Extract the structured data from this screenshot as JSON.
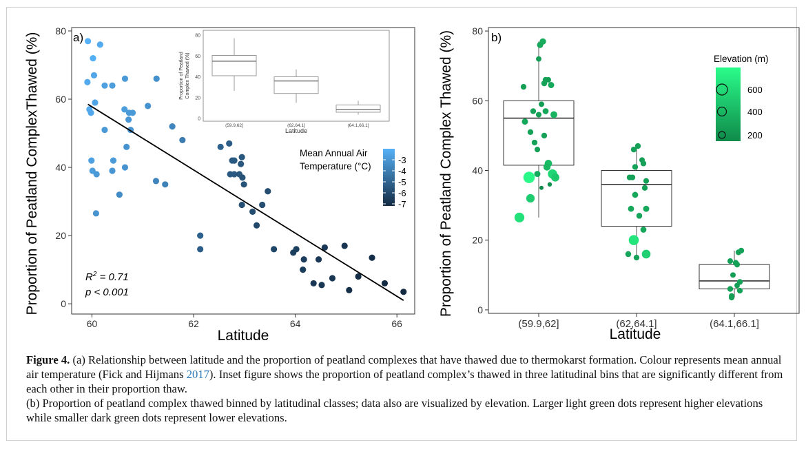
{
  "chart_data": [
    {
      "type": "scatter",
      "panel_label": "a)",
      "xlabel": "Latitude",
      "ylabel": "Proportion of Peatland ComplexThawed (%)",
      "xlim": [
        59.6,
        66.35
      ],
      "ylim": [
        -3,
        81
      ],
      "x_ticks": [
        60,
        62,
        64,
        66
      ],
      "y_ticks": [
        0,
        20,
        40,
        60,
        80
      ],
      "grid": false,
      "legend": {
        "title": "Mean Annual Air Temperature (°C)",
        "title_line1": "Mean Annual Air",
        "title_line2": "Temperature (°C)",
        "ticks": [
          "-3",
          "-4",
          "-5",
          "-6",
          "-7"
        ],
        "position": "right",
        "color_high": "#56b1f7",
        "color_low": "#132b43"
      },
      "annotation": {
        "r2_prefix": "R",
        "r2_sup": "2",
        "r2_suffix": " = 0.71",
        "p": "p < 0.001"
      },
      "trend": {
        "x": [
          59.92,
          66.13
        ],
        "y": [
          58.5,
          1.0
        ]
      },
      "points": [
        {
          "x": 59.92,
          "y": 77,
          "t": -3.0
        },
        {
          "x": 60.16,
          "y": 76,
          "t": -3.2
        },
        {
          "x": 60.02,
          "y": 72,
          "t": -3.1
        },
        {
          "x": 60.04,
          "y": 67,
          "t": -3.3
        },
        {
          "x": 59.91,
          "y": 65,
          "t": -3.2
        },
        {
          "x": 60.25,
          "y": 64,
          "t": -3.5
        },
        {
          "x": 60.4,
          "y": 64,
          "t": -3.6
        },
        {
          "x": 60.65,
          "y": 66,
          "t": -3.7
        },
        {
          "x": 61.27,
          "y": 66,
          "t": -4.0
        },
        {
          "x": 61.1,
          "y": 58,
          "t": -3.9
        },
        {
          "x": 60.06,
          "y": 59,
          "t": -3.4
        },
        {
          "x": 59.95,
          "y": 57,
          "t": -3.2
        },
        {
          "x": 59.98,
          "y": 56,
          "t": -3.3
        },
        {
          "x": 60.64,
          "y": 57,
          "t": -3.6
        },
        {
          "x": 60.73,
          "y": 56,
          "t": -3.7
        },
        {
          "x": 60.8,
          "y": 56,
          "t": -3.7
        },
        {
          "x": 60.72,
          "y": 54,
          "t": -3.8
        },
        {
          "x": 60.76,
          "y": 51,
          "t": -3.8
        },
        {
          "x": 60.25,
          "y": 51,
          "t": -3.7
        },
        {
          "x": 61.58,
          "y": 52,
          "t": -4.3
        },
        {
          "x": 61.78,
          "y": 48,
          "t": -4.6
        },
        {
          "x": 60.68,
          "y": 46,
          "t": -3.9
        },
        {
          "x": 59.99,
          "y": 42,
          "t": -3.5
        },
        {
          "x": 60.42,
          "y": 42,
          "t": -3.7
        },
        {
          "x": 60.65,
          "y": 40,
          "t": -3.9
        },
        {
          "x": 60.01,
          "y": 39,
          "t": -3.6
        },
        {
          "x": 60.4,
          "y": 39,
          "t": -3.8
        },
        {
          "x": 60.09,
          "y": 38,
          "t": -3.7
        },
        {
          "x": 61.26,
          "y": 36,
          "t": -4.3
        },
        {
          "x": 61.44,
          "y": 35,
          "t": -4.4
        },
        {
          "x": 60.54,
          "y": 32,
          "t": -4.1
        },
        {
          "x": 60.08,
          "y": 26.5,
          "t": -3.9
        },
        {
          "x": 62.53,
          "y": 46,
          "t": -5.4
        },
        {
          "x": 62.7,
          "y": 47,
          "t": -5.5
        },
        {
          "x": 62.76,
          "y": 42,
          "t": -5.6
        },
        {
          "x": 62.8,
          "y": 42,
          "t": -5.6
        },
        {
          "x": 62.95,
          "y": 43,
          "t": -5.7
        },
        {
          "x": 62.93,
          "y": 41,
          "t": -5.7
        },
        {
          "x": 62.72,
          "y": 38,
          "t": -5.6
        },
        {
          "x": 62.8,
          "y": 38,
          "t": -5.6
        },
        {
          "x": 62.9,
          "y": 38,
          "t": -5.7
        },
        {
          "x": 62.96,
          "y": 37,
          "t": -5.8
        },
        {
          "x": 62.99,
          "y": 35,
          "t": -5.8
        },
        {
          "x": 63.46,
          "y": 33,
          "t": -6.0
        },
        {
          "x": 62.95,
          "y": 29,
          "t": -5.9
        },
        {
          "x": 63.35,
          "y": 29,
          "t": -6.0
        },
        {
          "x": 63.16,
          "y": 27,
          "t": -6.0
        },
        {
          "x": 63.24,
          "y": 23,
          "t": -6.1
        },
        {
          "x": 62.13,
          "y": 20,
          "t": -5.4
        },
        {
          "x": 62.13,
          "y": 16,
          "t": -5.5
        },
        {
          "x": 63.58,
          "y": 16,
          "t": -6.2
        },
        {
          "x": 64.02,
          "y": 16,
          "t": -6.4
        },
        {
          "x": 63.96,
          "y": 15,
          "t": -6.4
        },
        {
          "x": 64.17,
          "y": 13,
          "t": -6.5
        },
        {
          "x": 64.15,
          "y": 10,
          "t": -6.5
        },
        {
          "x": 64.58,
          "y": 16.5,
          "t": -6.6
        },
        {
          "x": 64.97,
          "y": 17,
          "t": -6.7
        },
        {
          "x": 64.46,
          "y": 13,
          "t": -6.6
        },
        {
          "x": 65.51,
          "y": 13.5,
          "t": -6.9
        },
        {
          "x": 65.24,
          "y": 8,
          "t": -6.9
        },
        {
          "x": 64.73,
          "y": 7.5,
          "t": -6.7
        },
        {
          "x": 64.36,
          "y": 6,
          "t": -6.6
        },
        {
          "x": 64.52,
          "y": 5.5,
          "t": -6.6
        },
        {
          "x": 65.76,
          "y": 6,
          "t": -7.0
        },
        {
          "x": 65.06,
          "y": 4,
          "t": -6.9
        },
        {
          "x": 66.13,
          "y": 3.5,
          "t": -7.0
        }
      ]
    },
    {
      "type": "boxplot",
      "role": "inset",
      "xlabel": "Latitude",
      "ylabel_line1": "Proportion of Peatland",
      "ylabel_line2": "Complex Thawed (%)",
      "categories": [
        "(59.9,62]",
        "(62,64.1]",
        "(64.1,66.1]"
      ],
      "ylim": [
        0,
        82
      ],
      "y_ticks": [
        0,
        20,
        40,
        60,
        80
      ],
      "boxes": [
        {
          "min": 26.5,
          "q1": 41,
          "median": 55,
          "q3": 60.5,
          "max": 77
        },
        {
          "min": 15,
          "q1": 24,
          "median": 36,
          "q3": 40,
          "max": 47
        },
        {
          "min": 3.5,
          "q1": 6,
          "median": 8.5,
          "q3": 13,
          "max": 17
        }
      ]
    },
    {
      "type": "boxplot",
      "panel_label": "b)",
      "xlabel": "Latitude",
      "ylabel": "Proportion of Peatland Complex Thawed (%)",
      "categories": [
        "(59.9,62]",
        "(62,64.1]",
        "(64.1,66.1]"
      ],
      "ylim": [
        -1,
        81
      ],
      "y_ticks": [
        0,
        20,
        40,
        60,
        80
      ],
      "grid": false,
      "legend": {
        "title": "Elevation (m)",
        "ticks": [
          "600",
          "400",
          "200"
        ],
        "position": "top-right",
        "color_high": "#2afc8a",
        "color_low": "#0f8a4a"
      },
      "boxes": [
        {
          "min": 26.5,
          "q1": 41.5,
          "median": 55,
          "q3": 60,
          "max": 77
        },
        {
          "min": 15,
          "q1": 24,
          "median": 36,
          "q3": 40,
          "max": 47
        },
        {
          "min": 3.5,
          "q1": 6,
          "median": 8.3,
          "q3": 13,
          "max": 17
        }
      ],
      "points": [
        {
          "c": 0,
          "dx": 0.06,
          "y": 77,
          "e": 350
        },
        {
          "c": 0,
          "dx": 0.02,
          "y": 76,
          "e": 330
        },
        {
          "c": 0,
          "dx": 0.0,
          "y": 72,
          "e": 280
        },
        {
          "c": 0,
          "dx": 0.1,
          "y": 66,
          "e": 300
        },
        {
          "c": 0,
          "dx": 0.14,
          "y": 66,
          "e": 280
        },
        {
          "c": 0,
          "dx": 0.08,
          "y": 65,
          "e": 310
        },
        {
          "c": 0,
          "dx": 0.18,
          "y": 64.5,
          "e": 330
        },
        {
          "c": 0,
          "dx": -0.22,
          "y": 64,
          "e": 300
        },
        {
          "c": 0,
          "dx": 0.04,
          "y": 59,
          "e": 280
        },
        {
          "c": 0,
          "dx": -0.08,
          "y": 57,
          "e": 300
        },
        {
          "c": 0,
          "dx": 0.1,
          "y": 57,
          "e": 320
        },
        {
          "c": 0,
          "dx": 0.22,
          "y": 56,
          "e": 380
        },
        {
          "c": 0,
          "dx": 0.0,
          "y": 56,
          "e": 290
        },
        {
          "c": 0,
          "dx": -0.2,
          "y": 54,
          "e": 330
        },
        {
          "c": 0,
          "dx": -0.12,
          "y": 51,
          "e": 300
        },
        {
          "c": 0,
          "dx": 0.08,
          "y": 50,
          "e": 300
        },
        {
          "c": 0,
          "dx": -0.06,
          "y": 48,
          "e": 300
        },
        {
          "c": 0,
          "dx": -0.02,
          "y": 46,
          "e": 290
        },
        {
          "c": 0,
          "dx": 0.14,
          "y": 42,
          "e": 420
        },
        {
          "c": 0,
          "dx": 0.12,
          "y": 41,
          "e": 400
        },
        {
          "c": 0,
          "dx": 0.2,
          "y": 39,
          "e": 560
        },
        {
          "c": 0,
          "dx": -0.02,
          "y": 39,
          "e": 330
        },
        {
          "c": 0,
          "dx": 0.24,
          "y": 38,
          "e": 480
        },
        {
          "c": 0,
          "dx": -0.14,
          "y": 38,
          "e": 720
        },
        {
          "c": 0,
          "dx": 0.16,
          "y": 36,
          "e": 200
        },
        {
          "c": 0,
          "dx": 0.04,
          "y": 35,
          "e": 180
        },
        {
          "c": 0,
          "dx": -0.12,
          "y": 32,
          "e": 500
        },
        {
          "c": 0,
          "dx": -0.28,
          "y": 26.5,
          "e": 600
        },
        {
          "c": 1,
          "dx": 0.02,
          "y": 47,
          "e": 300
        },
        {
          "c": 1,
          "dx": -0.04,
          "y": 46,
          "e": 300
        },
        {
          "c": 1,
          "dx": 0.08,
          "y": 43,
          "e": 280
        },
        {
          "c": 1,
          "dx": 0.1,
          "y": 42,
          "e": 300
        },
        {
          "c": 1,
          "dx": -0.02,
          "y": 41,
          "e": 300
        },
        {
          "c": 1,
          "dx": -0.1,
          "y": 38,
          "e": 300
        },
        {
          "c": 1,
          "dx": -0.06,
          "y": 38,
          "e": 300
        },
        {
          "c": 1,
          "dx": 0.14,
          "y": 37,
          "e": 290
        },
        {
          "c": 1,
          "dx": 0.12,
          "y": 35,
          "e": 300
        },
        {
          "c": 1,
          "dx": -0.02,
          "y": 33,
          "e": 320
        },
        {
          "c": 1,
          "dx": -0.08,
          "y": 29,
          "e": 320
        },
        {
          "c": 1,
          "dx": 0.14,
          "y": 29,
          "e": 330
        },
        {
          "c": 1,
          "dx": 0.04,
          "y": 27,
          "e": 310
        },
        {
          "c": 1,
          "dx": 0.1,
          "y": 23,
          "e": 320
        },
        {
          "c": 1,
          "dx": -0.04,
          "y": 20,
          "e": 620
        },
        {
          "c": 1,
          "dx": -0.12,
          "y": 16,
          "e": 310
        },
        {
          "c": 1,
          "dx": 0.14,
          "y": 16,
          "e": 520
        },
        {
          "c": 1,
          "dx": 0.0,
          "y": 15,
          "e": 300
        },
        {
          "c": 2,
          "dx": 0.1,
          "y": 17,
          "e": 300
        },
        {
          "c": 2,
          "dx": 0.06,
          "y": 16.5,
          "e": 300
        },
        {
          "c": 2,
          "dx": -0.06,
          "y": 14,
          "e": 290
        },
        {
          "c": 2,
          "dx": 0.02,
          "y": 13.5,
          "e": 300
        },
        {
          "c": 2,
          "dx": 0.04,
          "y": 13,
          "e": 300
        },
        {
          "c": 2,
          "dx": -0.02,
          "y": 10,
          "e": 280
        },
        {
          "c": 2,
          "dx": 0.08,
          "y": 8,
          "e": 300
        },
        {
          "c": 2,
          "dx": 0.04,
          "y": 7,
          "e": 280
        },
        {
          "c": 2,
          "dx": -0.06,
          "y": 6,
          "e": 300
        },
        {
          "c": 2,
          "dx": 0.08,
          "y": 5.5,
          "e": 300
        },
        {
          "c": 2,
          "dx": -0.04,
          "y": 4,
          "e": 280
        },
        {
          "c": 2,
          "dx": -0.04,
          "y": 3.5,
          "e": 280
        }
      ]
    }
  ],
  "caption": {
    "label": "Figure 4.",
    "text1": " (a) Relationship between latitude and the proportion of peatland complexes that have thawed due to thermokarst formation. Colour represents mean annual air temperature (Fick and Hijmans ",
    "cite_year": "2017",
    "text2": "). Inset figure shows the proportion of peatland complex’s thawed in three latitudinal bins that are significantly different from each other in their proportion thaw.",
    "text3": "(b) Proportion of peatland complex thawed binned by latitudinal classes; data also are visualized by elevation. Larger light green dots represent higher elevations while smaller dark green dots represent lower elevations."
  }
}
